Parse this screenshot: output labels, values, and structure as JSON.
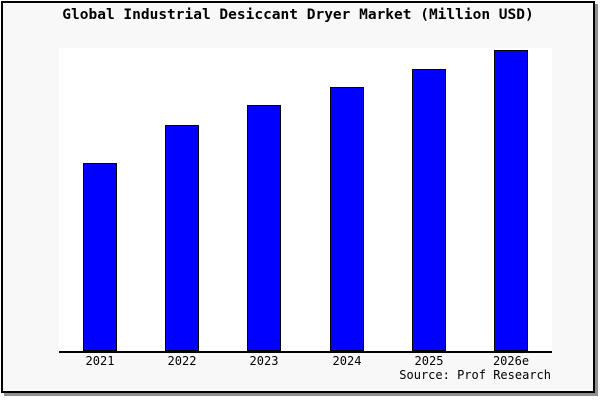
{
  "chart_data": {
    "type": "bar",
    "title": "Global Industrial Desiccant Dryer Market (Million USD)",
    "categories": [
      "2021",
      "2022",
      "2023",
      "2024",
      "2025",
      "2026e"
    ],
    "values": [
      62.5,
      75,
      81.5,
      87.5,
      93.5,
      100
    ],
    "value_note": "no y-axis or value labels shown; values are relative bar heights with 2026e = 100",
    "xlabel": "",
    "ylabel": "",
    "ylim": [
      0,
      100.5
    ],
    "grid": false,
    "legend": false,
    "bar_color": "#0000ff",
    "bar_border_color": "#000000"
  },
  "footer": {
    "source": "Source: Prof Research"
  },
  "colors": {
    "card_background": "#f8f8f8",
    "plot_background": "#ffffff",
    "border": "#000000",
    "shadow": "#8f8f8f"
  }
}
